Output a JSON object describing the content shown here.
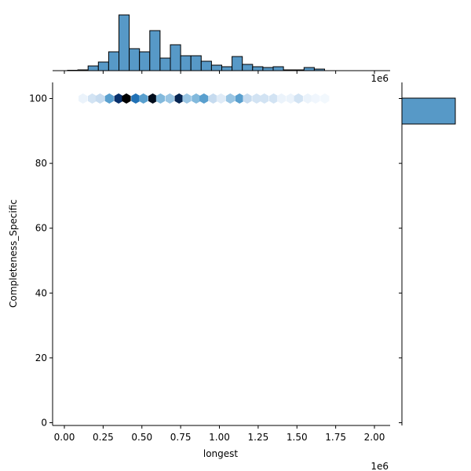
{
  "chart_data": {
    "type": "hexbin-jointplot",
    "title": "",
    "xlabel": "longest",
    "ylabel": "Completeness_Specific",
    "x_offset_label": "1e6",
    "top_offset_label": "1e6",
    "xlim": [
      -0.1,
      2.1
    ],
    "ylim": [
      -1,
      105
    ],
    "x_ticks": [
      "0.00",
      "0.25",
      "0.50",
      "0.75",
      "1.00",
      "1.25",
      "1.50",
      "1.75",
      "2.00"
    ],
    "x_tick_values": [
      0.0,
      0.25,
      0.5,
      0.75,
      1.0,
      1.25,
      1.5,
      1.75,
      2.0
    ],
    "y_ticks": [
      "0",
      "20",
      "40",
      "60",
      "80",
      "100"
    ],
    "y_tick_values": [
      0,
      20,
      40,
      60,
      80,
      100
    ],
    "grid": false,
    "colormap": "Blues",
    "hexbin": {
      "y": 100,
      "x_centers_1e6": [
        0.12,
        0.18,
        0.23,
        0.29,
        0.35,
        0.4,
        0.46,
        0.51,
        0.57,
        0.62,
        0.68,
        0.74,
        0.79,
        0.85,
        0.9,
        0.96,
        1.01,
        1.07,
        1.13,
        1.18,
        1.24,
        1.29,
        1.35,
        1.4,
        1.46,
        1.51,
        1.57,
        1.62,
        1.68
      ],
      "intensity": [
        0.05,
        0.15,
        0.2,
        0.45,
        0.8,
        1.0,
        0.6,
        0.45,
        0.95,
        0.35,
        0.3,
        0.85,
        0.3,
        0.35,
        0.45,
        0.2,
        0.1,
        0.3,
        0.45,
        0.2,
        0.15,
        0.15,
        0.15,
        0.05,
        0.05,
        0.15,
        0.05,
        0.03,
        0.02
      ]
    },
    "marginal_top": {
      "type": "histogram",
      "bin_start_1e6": 0.02,
      "bin_width_1e6": 0.066,
      "counts": [
        0.5,
        1,
        6,
        11,
        24,
        71,
        28,
        24,
        51,
        16,
        33,
        19,
        19,
        12,
        7,
        5,
        18,
        8,
        5,
        4,
        5,
        1,
        1,
        4,
        2
      ]
    },
    "marginal_right": {
      "type": "histogram",
      "bin_range": [
        92,
        100
      ],
      "counts": [
        1
      ],
      "note": "single bar — all values at ~100"
    }
  },
  "colors": {
    "bar_fill": "#5799c7",
    "bar_edge": "#000000",
    "axis": "#000000"
  }
}
